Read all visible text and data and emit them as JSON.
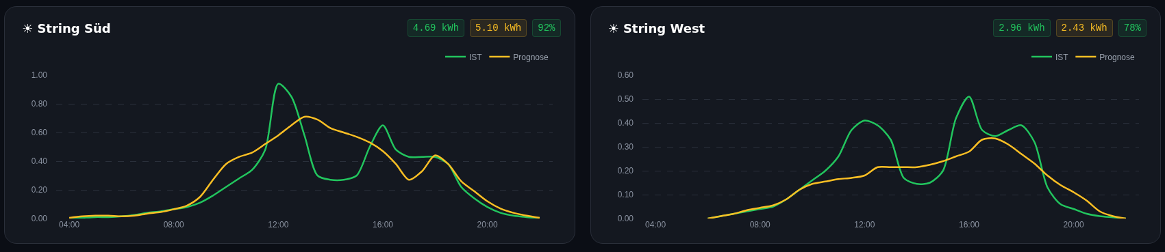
{
  "chart_data": [
    {
      "type": "line",
      "title": "☀ String Süd",
      "annotations": [
        "4.69 kWh",
        "5.10 kWh",
        "92%"
      ],
      "x": [
        4,
        4.5,
        5,
        5.5,
        6,
        6.5,
        7,
        7.5,
        8,
        8.5,
        9,
        9.5,
        10,
        10.5,
        11,
        11.5,
        12,
        12.5,
        13,
        13.5,
        14,
        14.5,
        15,
        15.5,
        16,
        16.5,
        17,
        17.5,
        18,
        18.5,
        19,
        19.5,
        20,
        20.5,
        21,
        21.5,
        22
      ],
      "series": [
        {
          "name": "IST",
          "color": "#22c55e",
          "values": [
            0.0,
            0.005,
            0.01,
            0.01,
            0.015,
            0.025,
            0.04,
            0.05,
            0.065,
            0.08,
            0.11,
            0.16,
            0.22,
            0.28,
            0.34,
            0.48,
            0.94,
            0.85,
            0.58,
            0.3,
            0.27,
            0.27,
            0.3,
            0.5,
            0.65,
            0.48,
            0.43,
            0.43,
            0.43,
            0.38,
            0.22,
            0.14,
            0.08,
            0.04,
            0.02,
            0.01,
            0.005
          ]
        },
        {
          "name": "Prognose",
          "color": "#fbbf24",
          "values": [
            0.005,
            0.015,
            0.02,
            0.02,
            0.015,
            0.02,
            0.035,
            0.045,
            0.065,
            0.09,
            0.15,
            0.27,
            0.38,
            0.43,
            0.46,
            0.52,
            0.58,
            0.65,
            0.71,
            0.69,
            0.63,
            0.6,
            0.57,
            0.53,
            0.47,
            0.38,
            0.27,
            0.33,
            0.44,
            0.38,
            0.26,
            0.19,
            0.12,
            0.07,
            0.04,
            0.02,
            0.005
          ]
        }
      ],
      "xlim": [
        3.5,
        22.5
      ],
      "xticks": [
        {
          "value": 4,
          "label": "04:00"
        },
        {
          "value": 8,
          "label": "08:00"
        },
        {
          "value": 12,
          "label": "12:00"
        },
        {
          "value": 16,
          "label": "16:00"
        },
        {
          "value": 20,
          "label": "20:00"
        }
      ],
      "ylim": [
        0,
        1
      ],
      "yticks": [
        {
          "value": 0,
          "label": "0.00"
        },
        {
          "value": 0.2,
          "label": "0.20"
        },
        {
          "value": 0.4,
          "label": "0.40"
        },
        {
          "value": 0.6,
          "label": "0.60"
        },
        {
          "value": 0.8,
          "label": "0.80"
        },
        {
          "value": 1,
          "label": "1.00"
        }
      ],
      "grid": "y",
      "legend": "top right",
      "marker": "none",
      "line_style": "solid"
    },
    {
      "type": "line",
      "title": "☀ String West",
      "annotations": [
        "2.96 kWh",
        "2.43 kWh",
        "78%"
      ],
      "x": [
        6,
        6.5,
        7,
        7.5,
        8,
        8.5,
        9,
        9.5,
        10,
        10.5,
        11,
        11.5,
        12,
        12.5,
        13,
        13.5,
        14,
        14.5,
        15,
        15.5,
        16,
        16.5,
        17,
        17.5,
        18,
        18.5,
        19,
        19.5,
        20,
        20.5,
        21,
        21.5,
        22
      ],
      "series": [
        {
          "name": "IST",
          "color": "#22c55e",
          "values": [
            0.0,
            0.01,
            0.02,
            0.03,
            0.04,
            0.05,
            0.08,
            0.12,
            0.16,
            0.2,
            0.26,
            0.37,
            0.41,
            0.39,
            0.33,
            0.17,
            0.145,
            0.15,
            0.2,
            0.42,
            0.51,
            0.37,
            0.345,
            0.37,
            0.39,
            0.32,
            0.13,
            0.06,
            0.04,
            0.02,
            0.01,
            0.005,
            0.0
          ]
        },
        {
          "name": "Prognose",
          "color": "#fbbf24",
          "values": [
            0.0,
            0.01,
            0.02,
            0.035,
            0.045,
            0.055,
            0.08,
            0.12,
            0.145,
            0.155,
            0.165,
            0.17,
            0.18,
            0.215,
            0.215,
            0.215,
            0.215,
            0.225,
            0.24,
            0.26,
            0.28,
            0.33,
            0.335,
            0.31,
            0.27,
            0.23,
            0.18,
            0.14,
            0.11,
            0.075,
            0.03,
            0.01,
            0.0
          ]
        }
      ],
      "xlim": [
        3.5,
        22.5
      ],
      "xticks": [
        {
          "value": 4,
          "label": "04:00"
        },
        {
          "value": 8,
          "label": "08:00"
        },
        {
          "value": 12,
          "label": "12:00"
        },
        {
          "value": 16,
          "label": "16:00"
        },
        {
          "value": 20,
          "label": "20:00"
        }
      ],
      "ylim": [
        0,
        0.6
      ],
      "yticks": [
        {
          "value": 0,
          "label": "0.00"
        },
        {
          "value": 0.1,
          "label": "0.10"
        },
        {
          "value": 0.2,
          "label": "0.20"
        },
        {
          "value": 0.3,
          "label": "0.30"
        },
        {
          "value": 0.4,
          "label": "0.40"
        },
        {
          "value": 0.5,
          "label": "0.50"
        },
        {
          "value": 0.6,
          "label": "0.60"
        }
      ],
      "grid": "y",
      "legend": "top right",
      "marker": "none",
      "line_style": "solid"
    }
  ]
}
